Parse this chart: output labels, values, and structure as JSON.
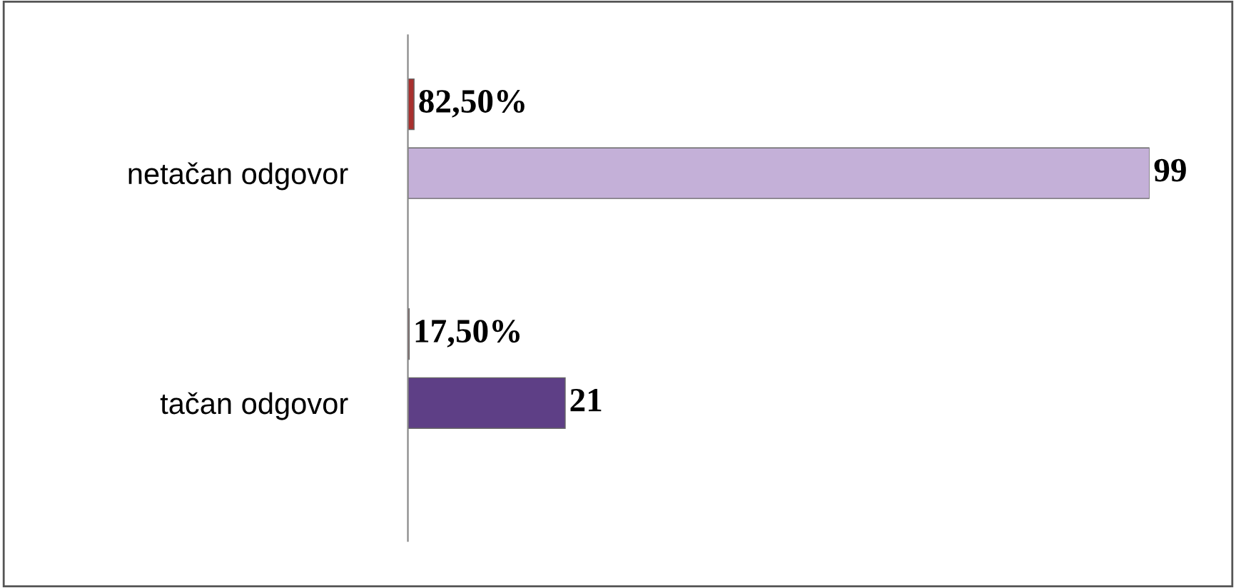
{
  "chart_data": {
    "type": "bar",
    "orientation": "horizontal",
    "categories": [
      "netačan odgovor",
      "tačan odgovor"
    ],
    "series": [
      {
        "colors": [
          "#a8302e",
          "#a8302e"
        ],
        "values": [
          0.825,
          0.175
        ],
        "value_labels": [
          "82,50%",
          "17,50%"
        ]
      },
      {
        "colors": [
          "#c4b0d8",
          "#5e3f86"
        ],
        "values": [
          99,
          21
        ],
        "value_labels": [
          "99",
          "21"
        ]
      }
    ],
    "grid": false,
    "legend": false
  }
}
